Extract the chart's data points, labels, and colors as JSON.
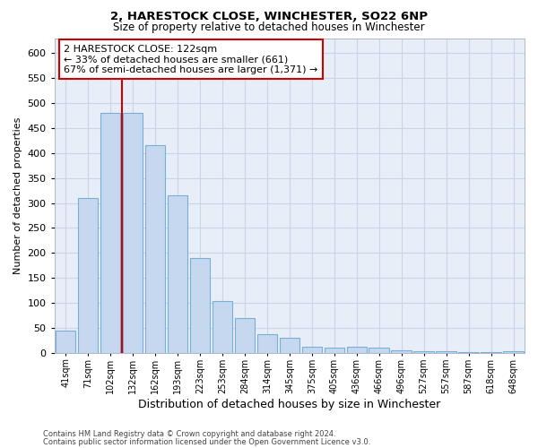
{
  "title": "2, HARESTOCK CLOSE, WINCHESTER, SO22 6NP",
  "subtitle": "Size of property relative to detached houses in Winchester",
  "xlabel": "Distribution of detached houses by size in Winchester",
  "ylabel": "Number of detached properties",
  "categories": [
    "41sqm",
    "71sqm",
    "102sqm",
    "132sqm",
    "162sqm",
    "193sqm",
    "223sqm",
    "253sqm",
    "284sqm",
    "314sqm",
    "345sqm",
    "375sqm",
    "405sqm",
    "436sqm",
    "466sqm",
    "496sqm",
    "527sqm",
    "557sqm",
    "587sqm",
    "618sqm",
    "648sqm"
  ],
  "values": [
    45,
    310,
    480,
    480,
    415,
    315,
    190,
    103,
    70,
    37,
    30,
    13,
    10,
    13,
    10,
    6,
    4,
    3,
    1,
    1,
    3
  ],
  "bar_color": "#c5d8f0",
  "bar_edge_color": "#7aafd4",
  "vline_color": "#cc0000",
  "vline_x": 3,
  "annotation_text": "2 HARESTOCK CLOSE: 122sqm\n← 33% of detached houses are smaller (661)\n67% of semi-detached houses are larger (1,371) →",
  "annotation_box_color": "#ffffff",
  "annotation_box_edge": "#cc0000",
  "footer1": "Contains HM Land Registry data © Crown copyright and database right 2024.",
  "footer2": "Contains public sector information licensed under the Open Government Licence v3.0.",
  "ylim": [
    0,
    630
  ],
  "yticks": [
    0,
    50,
    100,
    150,
    200,
    250,
    300,
    350,
    400,
    450,
    500,
    550,
    600
  ],
  "ax_facecolor": "#e8eef8",
  "background_color": "#ffffff",
  "grid_color": "#c8d4e8"
}
